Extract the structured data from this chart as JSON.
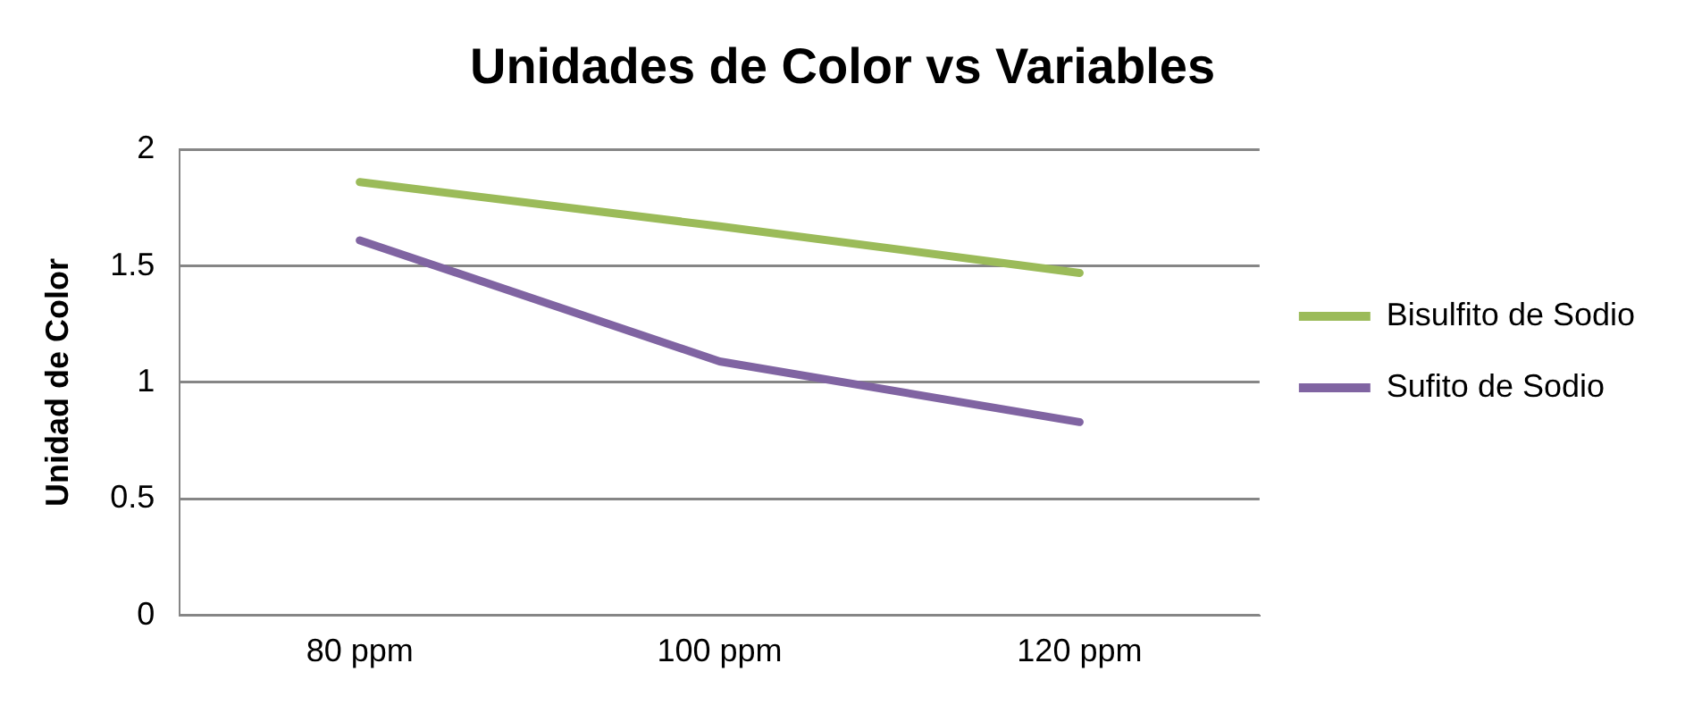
{
  "chart_data": {
    "type": "line",
    "title": "Unidades de Color vs Variables",
    "ylabel": "Unidad de Color",
    "categories": [
      "80 ppm",
      "100 ppm",
      "120 ppm"
    ],
    "series": [
      {
        "name": "Bisulfito de Sodio",
        "color": "#9bbb59",
        "values": [
          1.86,
          1.67,
          1.47
        ]
      },
      {
        "name": "Sufito de Sodio",
        "color": "#8064a2",
        "values": [
          1.61,
          1.09,
          0.83
        ]
      }
    ],
    "ylim": [
      0,
      2
    ],
    "yticks": [
      0,
      0.5,
      1,
      1.5,
      2
    ],
    "grid": "y",
    "legend": "right",
    "marker": "none"
  }
}
